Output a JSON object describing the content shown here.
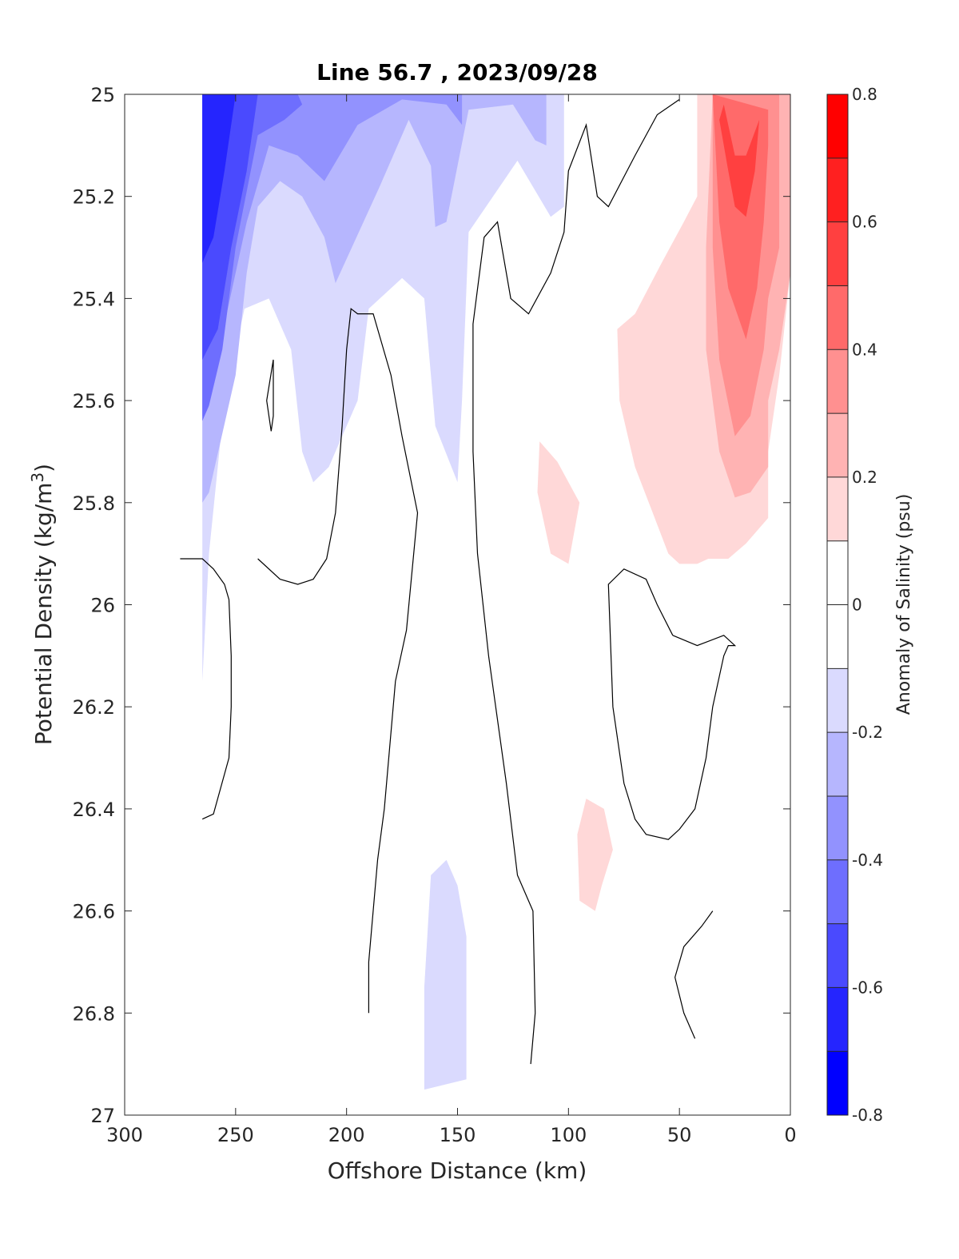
{
  "chart_data": {
    "type": "contour",
    "title": "Line 56.7 , 2023/09/28",
    "xlabel": "Offshore Distance (km)",
    "ylabel_main": "Potential Density (kg/m",
    "ylabel_sup": "3",
    "ylabel_close": ")",
    "xlim": [
      300,
      0
    ],
    "ylim": [
      27,
      25
    ],
    "x_ticks": [
      "300",
      "250",
      "200",
      "150",
      "100",
      "50",
      "0"
    ],
    "y_ticks": [
      "25",
      "25.2",
      "25.4",
      "25.6",
      "25.8",
      "26",
      "26.2",
      "26.4",
      "26.6",
      "26.8",
      "27"
    ],
    "colorbar": {
      "label": "Anomaly of Salinity (psu)",
      "range": [
        -0.8,
        0.8
      ],
      "ticks": [
        "0.8",
        "0.6",
        "0.4",
        "0.2",
        "0",
        "-0.2",
        "-0.4",
        "-0.6",
        "-0.8"
      ],
      "levels": [
        {
          "from": 0.7,
          "to": 0.8,
          "color": "#ff0000"
        },
        {
          "from": 0.6,
          "to": 0.7,
          "color": "#ff2020"
        },
        {
          "from": 0.5,
          "to": 0.6,
          "color": "#ff4040"
        },
        {
          "from": 0.4,
          "to": 0.5,
          "color": "#ff6a6a"
        },
        {
          "from": 0.3,
          "to": 0.4,
          "color": "#ff9090"
        },
        {
          "from": 0.2,
          "to": 0.3,
          "color": "#ffb3b3"
        },
        {
          "from": 0.1,
          "to": 0.2,
          "color": "#ffd8d8"
        },
        {
          "from": 0.0,
          "to": 0.1,
          "color": "#ffffff"
        },
        {
          "from": -0.1,
          "to": 0.0,
          "color": "#ffffff"
        },
        {
          "from": -0.2,
          "to": -0.1,
          "color": "#dadafe"
        },
        {
          "from": -0.3,
          "to": -0.2,
          "color": "#b6b6fe"
        },
        {
          "from": -0.4,
          "to": -0.3,
          "color": "#9292fe"
        },
        {
          "from": -0.5,
          "to": -0.4,
          "color": "#6e6efe"
        },
        {
          "from": -0.6,
          "to": -0.5,
          "color": "#4a4afe"
        },
        {
          "from": -0.7,
          "to": -0.6,
          "color": "#2525fe"
        },
        {
          "from": -0.8,
          "to": -0.7,
          "color": "#0000ff"
        }
      ]
    },
    "regions": [
      {
        "name": "neg-0.1",
        "color": "#dadafe",
        "points": [
          [
            265,
            25
          ],
          [
            102,
            25
          ],
          [
            102,
            25.22
          ],
          [
            108,
            25.24
          ],
          [
            123,
            25.13
          ],
          [
            145,
            25.27
          ],
          [
            148,
            25.6
          ],
          [
            150,
            25.76
          ],
          [
            160,
            25.65
          ],
          [
            165,
            25.4
          ],
          [
            175,
            25.36
          ],
          [
            190,
            25.42
          ],
          [
            195,
            25.6
          ],
          [
            208,
            25.73
          ],
          [
            215,
            25.76
          ],
          [
            220,
            25.7
          ],
          [
            225,
            25.5
          ],
          [
            235,
            25.4
          ],
          [
            246,
            25.42
          ],
          [
            255,
            25.6
          ],
          [
            262,
            25.9
          ],
          [
            265,
            26.15
          ]
        ]
      },
      {
        "name": "neg-0.2",
        "color": "#b6b6fe",
        "points": [
          [
            265,
            25
          ],
          [
            110,
            25
          ],
          [
            110,
            25.1
          ],
          [
            115,
            25.09
          ],
          [
            125,
            25.02
          ],
          [
            145,
            25.03
          ],
          [
            155,
            25.25
          ],
          [
            160,
            25.26
          ],
          [
            162,
            25.14
          ],
          [
            172,
            25.05
          ],
          [
            185,
            25.18
          ],
          [
            205,
            25.37
          ],
          [
            210,
            25.28
          ],
          [
            220,
            25.2
          ],
          [
            230,
            25.17
          ],
          [
            240,
            25.22
          ],
          [
            245,
            25.35
          ],
          [
            250,
            25.55
          ],
          [
            262,
            25.78
          ],
          [
            265,
            25.8
          ]
        ]
      },
      {
        "name": "neg-0.3",
        "color": "#9292fe",
        "points": [
          [
            265,
            25
          ],
          [
            148,
            25
          ],
          [
            148,
            25.06
          ],
          [
            155,
            25.02
          ],
          [
            175,
            25.01
          ],
          [
            195,
            25.06
          ],
          [
            210,
            25.17
          ],
          [
            222,
            25.12
          ],
          [
            235,
            25.1
          ],
          [
            245,
            25.25
          ],
          [
            255,
            25.45
          ],
          [
            263,
            25.62
          ],
          [
            265,
            25.63
          ]
        ]
      },
      {
        "name": "neg-0.4",
        "color": "#6e6efe",
        "points": [
          [
            265,
            25
          ],
          [
            222,
            25
          ],
          [
            220,
            25.02
          ],
          [
            228,
            25.05
          ],
          [
            240,
            25.08
          ],
          [
            250,
            25.3
          ],
          [
            256,
            25.5
          ],
          [
            262,
            25.61
          ],
          [
            265,
            25.64
          ]
        ]
      },
      {
        "name": "neg-0.5",
        "color": "#4a4afe",
        "points": [
          [
            265,
            25
          ],
          [
            240,
            25
          ],
          [
            245,
            25.15
          ],
          [
            252,
            25.3
          ],
          [
            258,
            25.46
          ],
          [
            265,
            25.52
          ]
        ]
      },
      {
        "name": "neg-0.6",
        "color": "#2525fe",
        "points": [
          [
            265,
            25
          ],
          [
            250,
            25
          ],
          [
            255,
            25.15
          ],
          [
            260,
            25.28
          ],
          [
            265,
            25.33
          ]
        ]
      },
      {
        "name": "neg-0.1-deep",
        "color": "#dadafe",
        "points": [
          [
            165,
            26.95
          ],
          [
            146,
            26.93
          ],
          [
            146,
            26.65
          ],
          [
            150,
            26.55
          ],
          [
            155,
            26.5
          ],
          [
            162,
            26.53
          ],
          [
            165,
            26.75
          ]
        ]
      },
      {
        "name": "pos-0.1",
        "color": "#ffd8d8",
        "points": [
          [
            0,
            25.2
          ],
          [
            0,
            25
          ],
          [
            42,
            25
          ],
          [
            42,
            25.2
          ],
          [
            48,
            25.25
          ],
          [
            58,
            25.33
          ],
          [
            70,
            25.43
          ],
          [
            78,
            25.46
          ],
          [
            77,
            25.6
          ],
          [
            70,
            25.73
          ],
          [
            62,
            25.82
          ],
          [
            55,
            25.9
          ],
          [
            50,
            25.92
          ],
          [
            42,
            25.92
          ],
          [
            37,
            25.91
          ],
          [
            28,
            25.91
          ],
          [
            20,
            25.88
          ],
          [
            10,
            25.83
          ],
          [
            10,
            25.7
          ],
          [
            5,
            25.55
          ],
          [
            0,
            25.35
          ]
        ]
      },
      {
        "name": "pos-0.2",
        "color": "#ffb3b3",
        "points": [
          [
            0,
            25.2
          ],
          [
            0,
            25
          ],
          [
            35,
            25
          ],
          [
            38,
            25.3
          ],
          [
            38,
            25.5
          ],
          [
            32,
            25.7
          ],
          [
            25,
            25.79
          ],
          [
            18,
            25.78
          ],
          [
            10,
            25.73
          ],
          [
            10,
            25.6
          ],
          [
            5,
            25.5
          ],
          [
            0,
            25.35
          ]
        ]
      },
      {
        "name": "pos-0.3",
        "color": "#ff9090",
        "points": [
          [
            5,
            25.2
          ],
          [
            5,
            25
          ],
          [
            35,
            25
          ],
          [
            35,
            25.3
          ],
          [
            32,
            25.52
          ],
          [
            25,
            25.67
          ],
          [
            18,
            25.63
          ],
          [
            12,
            25.5
          ],
          [
            10,
            25.4
          ],
          [
            5,
            25.3
          ]
        ]
      },
      {
        "name": "pos-0.4",
        "color": "#ff6a6a",
        "points": [
          [
            10,
            25.1
          ],
          [
            10,
            25.03
          ],
          [
            35,
            25
          ],
          [
            32,
            25.25
          ],
          [
            28,
            25.38
          ],
          [
            20,
            25.48
          ],
          [
            15,
            25.38
          ],
          [
            12,
            25.25
          ]
        ]
      },
      {
        "name": "pos-0.5",
        "color": "#ff4040",
        "points": [
          [
            15,
            25.1
          ],
          [
            14,
            25.05
          ],
          [
            20,
            25.12
          ],
          [
            25,
            25.12
          ],
          [
            30,
            25.02
          ],
          [
            32,
            25.05
          ],
          [
            28,
            25.15
          ],
          [
            25,
            25.22
          ],
          [
            20,
            25.24
          ],
          [
            16,
            25.15
          ]
        ]
      },
      {
        "name": "pos-0.1-blob-a",
        "color": "#ffd8d8",
        "points": [
          [
            113,
            25.68
          ],
          [
            105,
            25.72
          ],
          [
            95,
            25.8
          ],
          [
            100,
            25.92
          ],
          [
            108,
            25.9
          ],
          [
            114,
            25.78
          ]
        ]
      },
      {
        "name": "pos-0.1-blob-b",
        "color": "#ffd8d8",
        "points": [
          [
            92,
            26.38
          ],
          [
            84,
            26.4
          ],
          [
            80,
            26.48
          ],
          [
            85,
            26.55
          ],
          [
            88,
            26.6
          ],
          [
            95,
            26.58
          ],
          [
            96,
            26.45
          ]
        ]
      }
    ],
    "contour_lines": [
      {
        "name": "zero-line-a",
        "points": [
          [
            265,
            26.42
          ],
          [
            260,
            26.41
          ],
          [
            253,
            26.3
          ],
          [
            252,
            26.2
          ],
          [
            252,
            26.1
          ],
          [
            253,
            25.99
          ],
          [
            255,
            25.96
          ],
          [
            260,
            25.93
          ],
          [
            265,
            25.91
          ],
          [
            275,
            25.91
          ]
        ]
      },
      {
        "name": "zero-line-b",
        "points": [
          [
            240,
            25.91
          ],
          [
            230,
            25.95
          ],
          [
            222,
            25.96
          ],
          [
            215,
            25.95
          ],
          [
            209,
            25.91
          ],
          [
            205,
            25.82
          ],
          [
            202,
            25.65
          ],
          [
            200,
            25.5
          ],
          [
            198,
            25.42
          ],
          [
            195,
            25.43
          ],
          [
            188,
            25.43
          ],
          [
            180,
            25.55
          ],
          [
            175,
            25.67
          ],
          [
            168,
            25.82
          ],
          [
            173,
            26.05
          ],
          [
            178,
            26.15
          ],
          [
            183,
            26.4
          ],
          [
            186,
            26.5
          ],
          [
            190,
            26.7
          ],
          [
            190,
            26.8
          ]
        ]
      },
      {
        "name": "zero-line-c",
        "points": [
          [
            117,
            26.9
          ],
          [
            115,
            26.8
          ],
          [
            116,
            26.6
          ],
          [
            123,
            26.53
          ],
          [
            128,
            26.35
          ],
          [
            136,
            26.1
          ],
          [
            141,
            25.9
          ],
          [
            143,
            25.7
          ],
          [
            143,
            25.45
          ],
          [
            138,
            25.28
          ],
          [
            132,
            25.25
          ],
          [
            126,
            25.4
          ],
          [
            118,
            25.43
          ],
          [
            108,
            25.35
          ],
          [
            102,
            25.27
          ],
          [
            100,
            25.15
          ],
          [
            92,
            25.06
          ],
          [
            87,
            25.2
          ],
          [
            82,
            25.22
          ],
          [
            70,
            25.12
          ],
          [
            60,
            25.04
          ],
          [
            50,
            25.01
          ]
        ]
      },
      {
        "name": "loop-d",
        "points": [
          [
            53,
            26.06
          ],
          [
            60,
            26.0
          ],
          [
            65,
            25.95
          ],
          [
            75,
            25.93
          ],
          [
            82,
            25.96
          ],
          [
            80,
            26.2
          ],
          [
            75,
            26.35
          ],
          [
            70,
            26.42
          ],
          [
            65,
            26.45
          ],
          [
            55,
            26.46
          ],
          [
            50,
            26.44
          ],
          [
            43,
            26.4
          ],
          [
            38,
            26.3
          ],
          [
            35,
            26.2
          ],
          [
            30,
            26.1
          ],
          [
            28,
            26.08
          ],
          [
            25,
            26.08
          ],
          [
            30,
            26.06
          ],
          [
            42,
            26.08
          ],
          [
            53,
            26.06
          ]
        ]
      },
      {
        "name": "line-e",
        "points": [
          [
            35,
            26.6
          ],
          [
            40,
            26.63
          ],
          [
            48,
            26.67
          ],
          [
            52,
            26.73
          ],
          [
            48,
            26.8
          ],
          [
            43,
            26.85
          ]
        ]
      },
      {
        "name": "tick-f",
        "points": [
          [
            233,
            25.52
          ],
          [
            236,
            25.6
          ],
          [
            234,
            25.66
          ],
          [
            233,
            25.63
          ],
          [
            233,
            25.52
          ]
        ]
      }
    ]
  }
}
